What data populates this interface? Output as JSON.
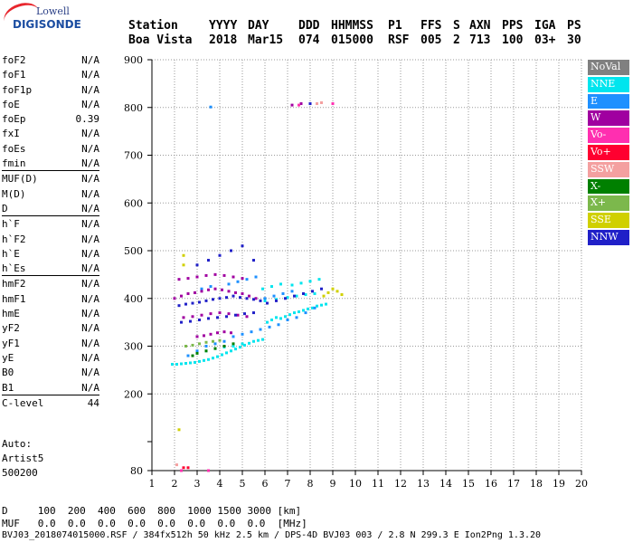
{
  "logo": {
    "top": "Lowell",
    "main": "DIGISONDE"
  },
  "header": {
    "labels": [
      "Station",
      "YYYY",
      "DAY",
      "DDD",
      "HHMMSS",
      "P1",
      "FFS",
      "S",
      "AXN",
      "PPS",
      "IGA",
      "PS"
    ],
    "values": [
      "Boa Vista",
      "2018",
      "Mar15",
      "074",
      "015000",
      "RSF",
      "005",
      "2",
      "713",
      "100",
      "03+",
      "30"
    ]
  },
  "params": [
    [
      {
        "label": "foF2",
        "value": "N/A"
      },
      {
        "label": "foF1",
        "value": "N/A"
      },
      {
        "label": "foF1p",
        "value": "N/A"
      },
      {
        "label": "foE",
        "value": "N/A"
      },
      {
        "label": "foEp",
        "value": "0.39"
      },
      {
        "label": "fxI",
        "value": "N/A"
      },
      {
        "label": "foEs",
        "value": "N/A"
      },
      {
        "label": "fmin",
        "value": "N/A"
      }
    ],
    [
      {
        "label": "MUF(D)",
        "value": "N/A"
      },
      {
        "label": "M(D)",
        "value": "N/A"
      },
      {
        "label": "D",
        "value": "N/A"
      }
    ],
    [
      {
        "label": "h`F",
        "value": "N/A"
      },
      {
        "label": "h`F2",
        "value": "N/A"
      },
      {
        "label": "h`E",
        "value": "N/A"
      },
      {
        "label": "h`Es",
        "value": "N/A"
      }
    ],
    [
      {
        "label": "hmF2",
        "value": "N/A"
      },
      {
        "label": "hmF1",
        "value": "N/A"
      },
      {
        "label": "hmE",
        "value": "N/A"
      },
      {
        "label": "yF2",
        "value": "N/A"
      },
      {
        "label": "yF1",
        "value": "N/A"
      },
      {
        "label": "yE",
        "value": "N/A"
      },
      {
        "label": "B0",
        "value": "N/A"
      },
      {
        "label": "B1",
        "value": "N/A"
      }
    ],
    [
      {
        "label": "C-level",
        "value": "44"
      }
    ]
  ],
  "autoscaling": [
    "Auto:",
    "Artist5",
    "500200"
  ],
  "legend": [
    {
      "label": "NoVal",
      "color": "#808080"
    },
    {
      "label": "NNE",
      "color": "#00e5ee"
    },
    {
      "label": "E",
      "color": "#1e90ff"
    },
    {
      "label": "W",
      "color": "#a000a0"
    },
    {
      "label": "Vo-",
      "color": "#ff2fb0"
    },
    {
      "label": "Vo+",
      "color": "#ff0030"
    },
    {
      "label": "SSW",
      "color": "#f4a0a0"
    },
    {
      "label": "X-",
      "color": "#008000"
    },
    {
      "label": "X+",
      "color": "#7cb84c"
    },
    {
      "label": "SSE",
      "color": "#d0d000"
    },
    {
      "label": "NNW",
      "color": "#2020c8"
    }
  ],
  "bottom": {
    "d_row": "D     100  200  400  600  800  1000 1500 3000 [km]",
    "muf_row": "MUF   0.0  0.0  0.0  0.0  0.0  0.0  0.0  0.0  [MHz]",
    "footer": "BVJ03_2018074015000.RSF / 384fx512h 50 kHz 2.5 km / DPS-4D BVJ03 003 / 2.8 N 299.3 E Ion2Png 1.3.20"
  },
  "chart_data": {
    "type": "scatter",
    "title": "",
    "xlabel": "",
    "ylabel": "",
    "xlim": [
      1,
      20
    ],
    "ylim": [
      80,
      900
    ],
    "x_ticks": [
      1,
      2,
      3,
      4,
      5,
      6,
      7,
      8,
      9,
      10,
      11,
      12,
      13,
      14,
      15,
      16,
      17,
      18,
      19,
      20
    ],
    "y_ticks": [
      80,
      100,
      200,
      300,
      400,
      500,
      600,
      700,
      800,
      900
    ],
    "grid": true,
    "series": [
      {
        "name": "NNE",
        "color": "#00e5ee",
        "x": [
          1.9,
          2.1,
          2.3,
          2.5,
          2.7,
          2.9,
          3.1,
          3.3,
          3.5,
          3.7,
          3.9,
          4.1,
          4.3,
          4.5,
          4.7,
          4.9,
          5.1,
          5.3,
          5.5,
          5.7,
          5.9,
          6.1,
          6.3,
          6.5,
          6.7,
          6.9,
          7.1,
          7.3,
          7.5,
          7.7,
          7.9,
          8.1,
          8.3,
          8.5,
          8.7,
          5.9,
          6.3,
          6.7,
          7.2,
          7.6,
          8.0,
          8.4,
          6.0,
          6.5,
          7.0,
          7.4,
          7.8,
          8.2,
          3.4,
          3.8,
          4.2,
          4.6,
          5.0
        ],
        "y": [
          262,
          262,
          263,
          264,
          265,
          266,
          268,
          270,
          272,
          275,
          278,
          282,
          286,
          290,
          294,
          298,
          302,
          306,
          310,
          312,
          314,
          350,
          355,
          360,
          358,
          362,
          366,
          370,
          372,
          375,
          378,
          380,
          384,
          386,
          388,
          420,
          425,
          430,
          428,
          432,
          436,
          440,
          395,
          398,
          402,
          405,
          408,
          410,
          290,
          295,
          298,
          300,
          305
        ]
      },
      {
        "name": "E",
        "color": "#1e90ff",
        "x": [
          2.6,
          3.0,
          3.4,
          3.8,
          4.2,
          4.6,
          5.0,
          5.4,
          5.8,
          6.2,
          6.6,
          7.0,
          7.4,
          7.8,
          8.2,
          3.2,
          3.6,
          4.4,
          4.8,
          5.2,
          5.6,
          6.0,
          6.4,
          6.8,
          7.2,
          3.6
        ],
        "y": [
          280,
          290,
          300,
          305,
          310,
          320,
          325,
          330,
          335,
          340,
          345,
          355,
          360,
          370,
          380,
          420,
          425,
          430,
          435,
          440,
          445,
          400,
          405,
          410,
          415,
          801
        ]
      },
      {
        "name": "W",
        "color": "#a000a0",
        "x": [
          2.0,
          2.3,
          2.6,
          2.9,
          3.2,
          3.5,
          3.8,
          4.1,
          4.4,
          4.7,
          5.0,
          5.3,
          5.6,
          2.4,
          2.8,
          3.2,
          3.6,
          4.0,
          4.4,
          4.8,
          5.2,
          2.2,
          2.6,
          3.0,
          3.4,
          3.8,
          4.2,
          4.6,
          5.0,
          3.0,
          3.3,
          3.6,
          3.9,
          4.2,
          4.5,
          7.2,
          7.6
        ],
        "y": [
          400,
          405,
          410,
          412,
          415,
          418,
          420,
          418,
          415,
          412,
          410,
          405,
          400,
          360,
          362,
          365,
          368,
          370,
          368,
          365,
          362,
          440,
          442,
          445,
          448,
          450,
          448,
          445,
          442,
          320,
          322,
          325,
          328,
          330,
          328,
          805,
          808
        ]
      },
      {
        "name": "Vo-",
        "color": "#ff2fb0",
        "x": [
          7.5,
          9.0,
          2.3,
          3.5
        ],
        "y": [
          805,
          808,
          80,
          80
        ]
      },
      {
        "name": "Vo+",
        "color": "#ff0030",
        "x": [
          2.4,
          2.6
        ],
        "y": [
          82,
          82
        ]
      },
      {
        "name": "SSW",
        "color": "#f4a0a0",
        "x": [
          8.3,
          8.5,
          2.1
        ],
        "y": [
          808,
          810,
          84
        ]
      },
      {
        "name": "X-",
        "color": "#008000",
        "x": [
          3.0,
          3.4,
          3.8,
          4.2,
          4.6,
          2.8
        ],
        "y": [
          285,
          290,
          295,
          300,
          305,
          280
        ]
      },
      {
        "name": "X+",
        "color": "#7cb84c",
        "x": [
          2.5,
          2.8,
          3.1,
          3.4,
          3.7,
          4.0
        ],
        "y": [
          300,
          302,
          305,
          308,
          310,
          312
        ]
      },
      {
        "name": "SSE",
        "color": "#d0d000",
        "x": [
          8.6,
          8.8,
          9.0,
          9.2,
          9.4,
          2.2,
          2.4,
          2.4
        ],
        "y": [
          405,
          412,
          420,
          415,
          408,
          125,
          470,
          490
        ]
      },
      {
        "name": "NNW",
        "color": "#2020c8",
        "x": [
          2.2,
          2.5,
          2.8,
          3.1,
          3.4,
          3.7,
          4.0,
          4.3,
          4.6,
          4.9,
          5.2,
          5.5,
          5.8,
          2.3,
          2.7,
          3.1,
          3.5,
          3.9,
          4.3,
          4.7,
          5.1,
          5.5,
          6.1,
          6.5,
          6.9,
          7.3,
          7.7,
          8.1,
          8.5,
          3.0,
          3.5,
          4.0,
          4.5,
          5.0,
          5.5,
          8.0
        ],
        "y": [
          385,
          388,
          390,
          392,
          395,
          398,
          400,
          402,
          405,
          402,
          400,
          398,
          395,
          350,
          352,
          355,
          358,
          360,
          362,
          365,
          368,
          370,
          390,
          395,
          400,
          405,
          410,
          415,
          420,
          470,
          480,
          490,
          500,
          510,
          480,
          808
        ]
      }
    ]
  }
}
